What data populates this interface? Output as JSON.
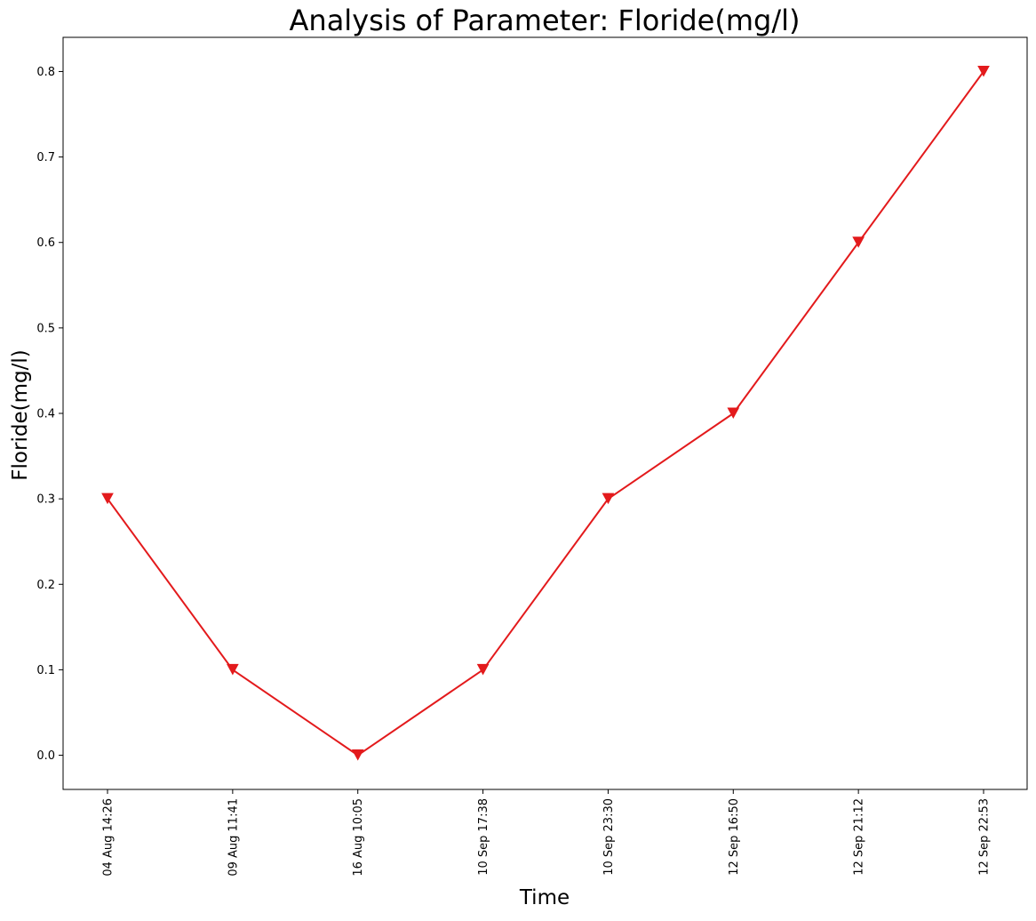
{
  "chart_data": {
    "type": "line",
    "title": "Analysis of Parameter: Floride(mg/l)",
    "xlabel": "Time",
    "ylabel": "Floride(mg/l)",
    "categories": [
      "04 Aug 14:26",
      "09 Aug 11:41",
      "16 Aug 10:05",
      "10 Sep 17:38",
      "10 Sep 23:30",
      "12 Sep 16:50",
      "12 Sep 21:12",
      "12 Sep 22:53"
    ],
    "series": [
      {
        "values": [
          0.3,
          0.1,
          0.0,
          0.1,
          0.3,
          0.4,
          0.6,
          0.8
        ],
        "color": "#e31a1c",
        "marker": "triangle-down"
      }
    ],
    "ylim": [
      -0.04,
      0.84
    ],
    "yticks": [
      0.0,
      0.1,
      0.2,
      0.3,
      0.4,
      0.5,
      0.6,
      0.7,
      0.8
    ],
    "ytick_labels": [
      "0.0",
      "0.1",
      "0.2",
      "0.3",
      "0.4",
      "0.5",
      "0.6",
      "0.7",
      "0.8"
    ],
    "grid": false,
    "legend": "none"
  }
}
